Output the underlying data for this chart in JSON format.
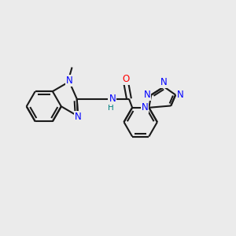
{
  "bg_color": "#ebebeb",
  "bond_color": "#1a1a1a",
  "N_color": "#0000ff",
  "O_color": "#ff0000",
  "H_color": "#008080",
  "lw": 1.5,
  "fig_w": 3.0,
  "fig_h": 3.0,
  "dpi": 100,
  "xlim": [
    0,
    10
  ],
  "ylim": [
    0,
    10
  ]
}
